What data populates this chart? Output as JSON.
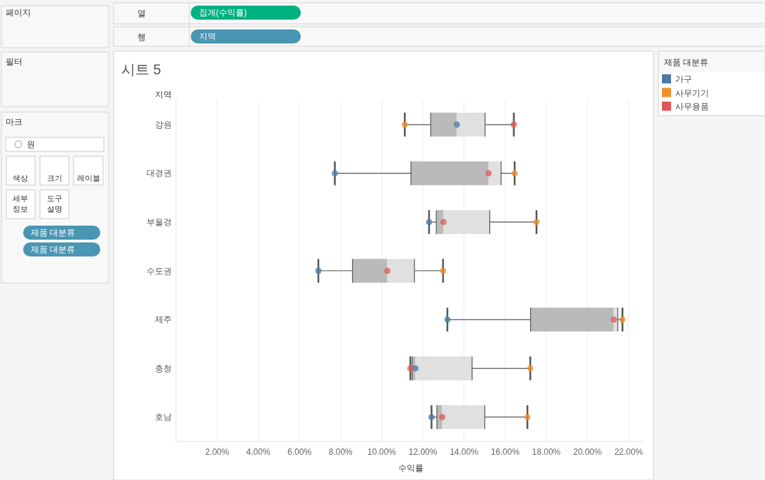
{
  "chart_data": {
    "type": "box",
    "title": "시트 5",
    "xlabel": "수익률",
    "ylabel": "지역",
    "legend_title": "제품 대분류",
    "orientation": "horizontal",
    "categories": [
      "강원",
      "대경권",
      "부울경",
      "수도권",
      "제주",
      "충청",
      "호남"
    ],
    "boxes": [
      {
        "low": 11.12,
        "q1": 12.38,
        "median": 13.65,
        "q3": 15.02,
        "high": 16.42
      },
      {
        "low": 7.72,
        "q1": 11.42,
        "median": 15.19,
        "q3": 15.8,
        "high": 16.46
      },
      {
        "low": 12.3,
        "q1": 12.65,
        "median": 13.0,
        "q3": 15.25,
        "high": 17.52
      },
      {
        "low": 6.92,
        "q1": 8.58,
        "median": 10.27,
        "q3": 11.59,
        "high": 12.98
      },
      {
        "low": 13.19,
        "q1": 17.23,
        "median": 21.28,
        "q3": 21.47,
        "high": 21.7
      },
      {
        "low": 11.39,
        "q1": 11.48,
        "median": 11.64,
        "q3": 14.39,
        "high": 17.22
      },
      {
        "low": 12.42,
        "q1": 12.68,
        "median": 12.94,
        "q3": 15.01,
        "high": 17.08
      }
    ],
    "series": [
      {
        "name": "가구",
        "type": "scatter",
        "color": "#4e79a7",
        "values": [
          13.65,
          7.72,
          12.3,
          6.92,
          13.19,
          11.64,
          12.42
        ]
      },
      {
        "name": "사무기기",
        "type": "scatter",
        "color": "#f28e2b",
        "values": [
          11.12,
          16.46,
          17.52,
          12.98,
          21.7,
          17.22,
          17.08
        ]
      },
      {
        "name": "사무용품",
        "type": "scatter",
        "color": "#e15759",
        "values": [
          16.42,
          15.19,
          13.0,
          10.27,
          21.28,
          11.39,
          12.94
        ]
      }
    ],
    "xlim": [
      0,
      22.8
    ],
    "xticks": [
      {
        "value": 2,
        "label": "2.00%"
      },
      {
        "value": 4,
        "label": "4.00%"
      },
      {
        "value": 6,
        "label": "6.00%"
      },
      {
        "value": 8,
        "label": "8.00%"
      },
      {
        "value": 10,
        "label": "10.00%"
      },
      {
        "value": 12,
        "label": "12.00%"
      },
      {
        "value": 14,
        "label": "14.00%"
      },
      {
        "value": 16,
        "label": "16.00%"
      },
      {
        "value": 18,
        "label": "18.00%"
      },
      {
        "value": 20,
        "label": "20.00%"
      },
      {
        "value": 22,
        "label": "22.00%"
      }
    ],
    "grid": "x",
    "legend": "top right",
    "marker": "circle",
    "annotations": [
      "페이지",
      "열",
      "집계(수익률)",
      "행",
      "지역",
      "필터",
      "마크",
      "원",
      "색상",
      "크기",
      "레이블",
      "세부 정보",
      "도구 설명",
      "제품 대분류",
      "제품 대분류"
    ]
  }
}
